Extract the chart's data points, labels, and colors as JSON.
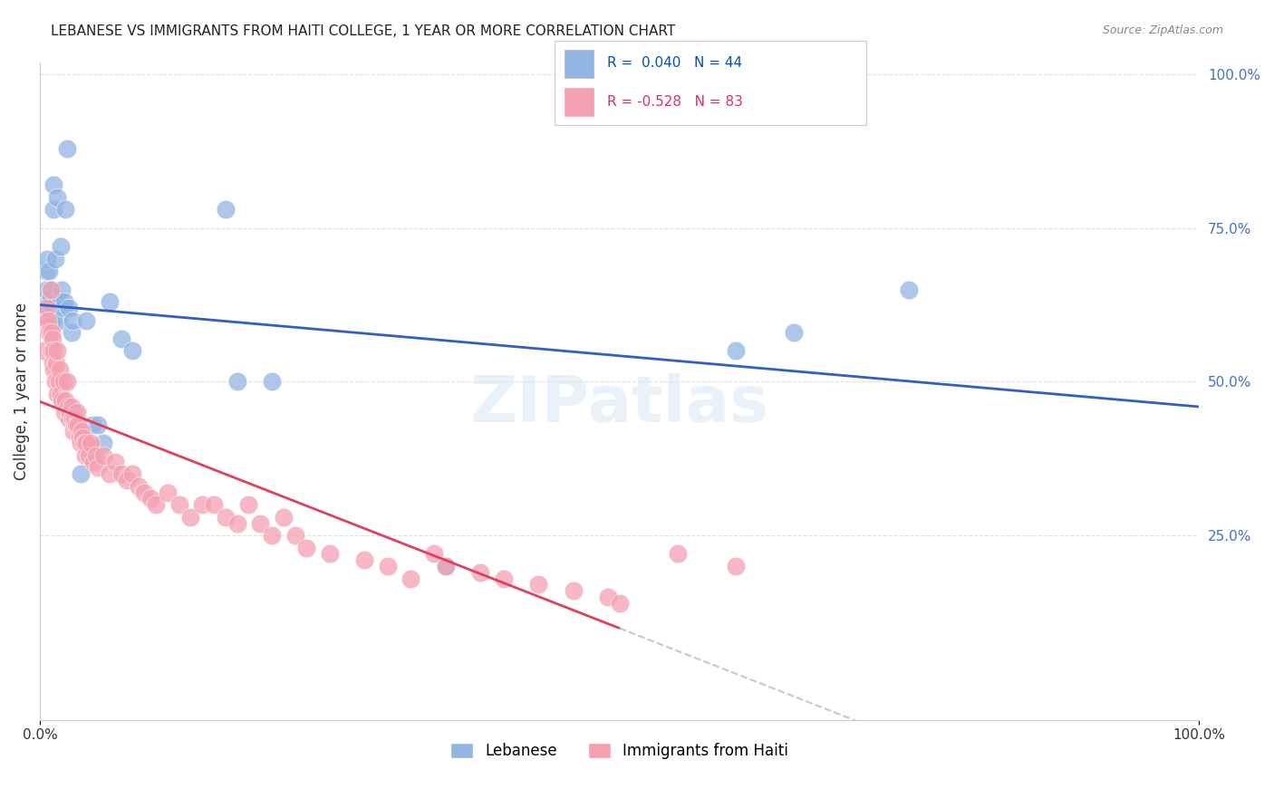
{
  "title": "LEBANESE VS IMMIGRANTS FROM HAITI COLLEGE, 1 YEAR OR MORE CORRELATION CHART",
  "source": "Source: ZipAtlas.com",
  "ylabel": "College, 1 year or more",
  "right_yticks": [
    "100.0%",
    "75.0%",
    "50.0%",
    "25.0%"
  ],
  "right_ytick_vals": [
    1.0,
    0.75,
    0.5,
    0.25
  ],
  "watermark": "ZIPatlas",
  "r1": 0.04,
  "n1": 44,
  "r2": -0.528,
  "n2": 83,
  "color_blue": "#92b4e3",
  "color_pink": "#f4a0b0",
  "line_blue": "#3060c0",
  "line_pink": "#e04060",
  "line_dashed_color": "#c8c8c8",
  "blue_label": "Lebanese",
  "pink_label": "Immigrants from Haiti",
  "blue_x": [
    0.005,
    0.005,
    0.006,
    0.007,
    0.008,
    0.008,
    0.009,
    0.01,
    0.01,
    0.01,
    0.011,
    0.011,
    0.012,
    0.012,
    0.013,
    0.014,
    0.015,
    0.016,
    0.017,
    0.018,
    0.019,
    0.02,
    0.021,
    0.022,
    0.023,
    0.025,
    0.027,
    0.028,
    0.03,
    0.035,
    0.04,
    0.045,
    0.05,
    0.055,
    0.06,
    0.07,
    0.08,
    0.16,
    0.17,
    0.2,
    0.35,
    0.6,
    0.65,
    0.75
  ],
  "blue_y": [
    0.68,
    0.65,
    0.7,
    0.62,
    0.68,
    0.63,
    0.64,
    0.6,
    0.65,
    0.6,
    0.62,
    0.6,
    0.82,
    0.78,
    0.7,
    0.63,
    0.8,
    0.6,
    0.63,
    0.72,
    0.65,
    0.62,
    0.63,
    0.78,
    0.88,
    0.62,
    0.58,
    0.6,
    0.45,
    0.35,
    0.6,
    0.43,
    0.43,
    0.4,
    0.63,
    0.57,
    0.55,
    0.78,
    0.5,
    0.5,
    0.2,
    0.55,
    0.58,
    0.65
  ],
  "pink_x": [
    0.003,
    0.005,
    0.006,
    0.007,
    0.008,
    0.009,
    0.01,
    0.01,
    0.011,
    0.011,
    0.012,
    0.012,
    0.013,
    0.014,
    0.015,
    0.015,
    0.016,
    0.017,
    0.018,
    0.019,
    0.02,
    0.021,
    0.022,
    0.023,
    0.024,
    0.025,
    0.026,
    0.027,
    0.028,
    0.029,
    0.03,
    0.031,
    0.032,
    0.033,
    0.034,
    0.035,
    0.036,
    0.037,
    0.038,
    0.039,
    0.04,
    0.042,
    0.044,
    0.046,
    0.048,
    0.05,
    0.055,
    0.06,
    0.065,
    0.07,
    0.075,
    0.08,
    0.085,
    0.09,
    0.095,
    0.1,
    0.11,
    0.12,
    0.13,
    0.14,
    0.15,
    0.16,
    0.17,
    0.18,
    0.19,
    0.2,
    0.21,
    0.22,
    0.23,
    0.25,
    0.28,
    0.3,
    0.32,
    0.34,
    0.35,
    0.38,
    0.4,
    0.43,
    0.46,
    0.49,
    0.5,
    0.55,
    0.6
  ],
  "pink_y": [
    0.55,
    0.6,
    0.62,
    0.6,
    0.58,
    0.65,
    0.58,
    0.55,
    0.53,
    0.57,
    0.52,
    0.55,
    0.5,
    0.53,
    0.55,
    0.48,
    0.5,
    0.52,
    0.48,
    0.47,
    0.5,
    0.45,
    0.47,
    0.5,
    0.46,
    0.44,
    0.45,
    0.46,
    0.44,
    0.42,
    0.44,
    0.43,
    0.45,
    0.43,
    0.41,
    0.4,
    0.42,
    0.41,
    0.4,
    0.38,
    0.4,
    0.38,
    0.4,
    0.37,
    0.38,
    0.36,
    0.38,
    0.35,
    0.37,
    0.35,
    0.34,
    0.35,
    0.33,
    0.32,
    0.31,
    0.3,
    0.32,
    0.3,
    0.28,
    0.3,
    0.3,
    0.28,
    0.27,
    0.3,
    0.27,
    0.25,
    0.28,
    0.25,
    0.23,
    0.22,
    0.21,
    0.2,
    0.18,
    0.22,
    0.2,
    0.19,
    0.18,
    0.17,
    0.16,
    0.15,
    0.14,
    0.22,
    0.2
  ],
  "xmin": 0.0,
  "xmax": 1.0,
  "ymin": 0.0,
  "ymax": 1.0,
  "grid_color": "#e0e0e0",
  "title_fontsize": 11,
  "axis_label_color": "#333333",
  "right_axis_color": "#4472c4",
  "legend_r1_color": "#0050c0",
  "legend_r2_color": "#e03060"
}
